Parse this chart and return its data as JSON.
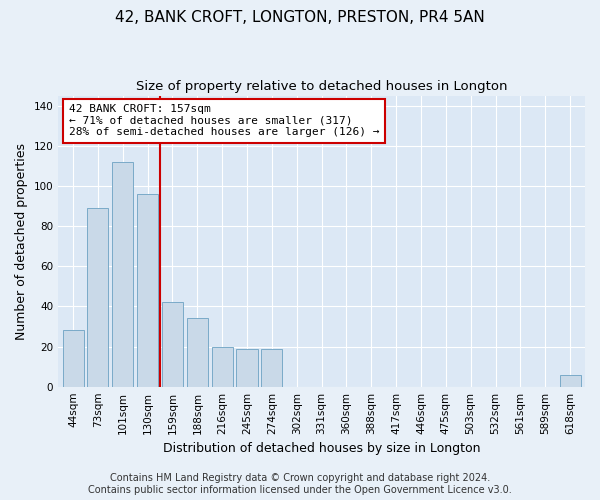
{
  "title": "42, BANK CROFT, LONGTON, PRESTON, PR4 5AN",
  "subtitle": "Size of property relative to detached houses in Longton",
  "xlabel": "Distribution of detached houses by size in Longton",
  "ylabel": "Number of detached properties",
  "footer_line1": "Contains HM Land Registry data © Crown copyright and database right 2024.",
  "footer_line2": "Contains public sector information licensed under the Open Government Licence v3.0.",
  "bar_labels": [
    "44sqm",
    "73sqm",
    "101sqm",
    "130sqm",
    "159sqm",
    "188sqm",
    "216sqm",
    "245sqm",
    "274sqm",
    "302sqm",
    "331sqm",
    "360sqm",
    "388sqm",
    "417sqm",
    "446sqm",
    "475sqm",
    "503sqm",
    "532sqm",
    "561sqm",
    "589sqm",
    "618sqm"
  ],
  "bar_values": [
    28,
    89,
    112,
    96,
    42,
    34,
    20,
    19,
    19,
    0,
    0,
    0,
    0,
    0,
    0,
    0,
    0,
    0,
    0,
    0,
    6
  ],
  "bar_color": "#c9d9e8",
  "bar_edge_color": "#7aaac8",
  "background_color": "#e8f0f8",
  "plot_bg_color": "#dce8f5",
  "grid_color": "#ffffff",
  "vline_color": "#cc0000",
  "vline_x": 4.5,
  "annotation_text": "42 BANK CROFT: 157sqm\n← 71% of detached houses are smaller (317)\n28% of semi-detached houses are larger (126) →",
  "annotation_box_color": "#ffffff",
  "annotation_box_edge": "#cc0000",
  "ylim": [
    0,
    145
  ],
  "yticks": [
    0,
    20,
    40,
    60,
    80,
    100,
    120,
    140
  ],
  "title_fontsize": 11,
  "subtitle_fontsize": 9.5,
  "xlabel_fontsize": 9,
  "ylabel_fontsize": 9,
  "tick_fontsize": 7.5,
  "footer_fontsize": 7
}
